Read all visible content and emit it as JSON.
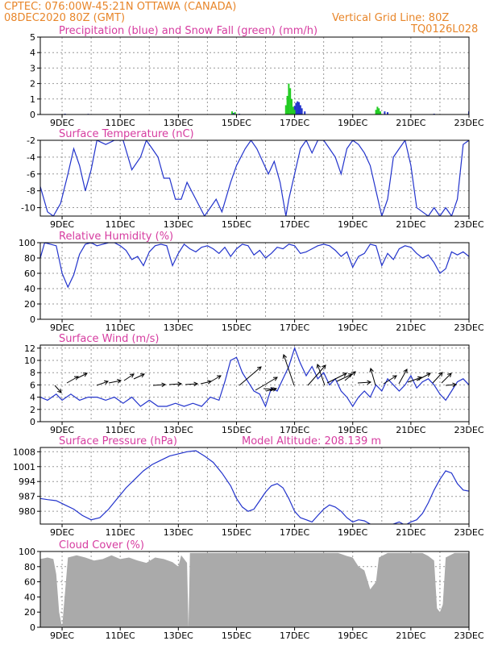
{
  "header": {
    "line1_left": "CPTEC:   076:00W-45:21N   OTTAWA (CANADA)",
    "line2_left": "08DEC2020 80Z (GMT)",
    "line2_right": "Vertical Grid Line: 80Z",
    "line3_right": "TQ0126L028"
  },
  "colors": {
    "header": "#e8862a",
    "title": "#d63ca0",
    "line": "#2233cc",
    "snow": "#22cc22",
    "precip": "#2233cc",
    "cloud": "#aaaaaa"
  },
  "chart_data": [
    {
      "type": "bar",
      "title": "Precipitation (blue) and Snow Fall (green) (mm/h)",
      "x_labels": [
        "9DEC",
        "11DEC",
        "13DEC",
        "15DEC",
        "17DEC",
        "19DEC",
        "21DEC",
        "23DEC"
      ],
      "x_label_days": [
        9,
        11,
        13,
        15,
        17,
        19,
        21,
        23
      ],
      "xlim": [
        8.25,
        23.0
      ],
      "ylim": [
        0,
        5
      ],
      "yticks": [
        0,
        1,
        2,
        3,
        4,
        5
      ],
      "series": [
        {
          "name": "Precipitation",
          "points": [
            [
              9.1,
              0.05
            ],
            [
              9.9,
              0.04
            ],
            [
              14.9,
              0.1
            ],
            [
              15.1,
              0.05
            ],
            [
              16.9,
              0.2
            ],
            [
              17.0,
              0.55
            ],
            [
              17.05,
              0.75
            ],
            [
              17.1,
              0.85
            ],
            [
              17.15,
              0.8
            ],
            [
              17.2,
              0.6
            ],
            [
              17.25,
              0.4
            ],
            [
              17.35,
              0.2
            ],
            [
              19.9,
              0.15
            ],
            [
              20.1,
              0.2
            ],
            [
              20.2,
              0.15
            ],
            [
              21.8,
              0.05
            ],
            [
              23.0,
              0.2
            ]
          ]
        },
        {
          "name": "Snow Fall",
          "points": [
            [
              14.85,
              0.2
            ],
            [
              14.95,
              0.15
            ],
            [
              16.7,
              0.6
            ],
            [
              16.75,
              1.2
            ],
            [
              16.8,
              2.0
            ],
            [
              16.85,
              1.7
            ],
            [
              16.9,
              1.0
            ],
            [
              16.95,
              0.5
            ],
            [
              17.0,
              0.3
            ],
            [
              19.8,
              0.3
            ],
            [
              19.85,
              0.5
            ],
            [
              19.9,
              0.4
            ],
            [
              19.95,
              0.2
            ]
          ]
        }
      ]
    },
    {
      "type": "line",
      "title": "Surface Temperature (nC)",
      "x_labels": [
        "9DEC",
        "11DEC",
        "13DEC",
        "15DEC",
        "17DEC",
        "19DEC",
        "21DEC",
        "23DEC"
      ],
      "x_label_days": [
        9,
        11,
        13,
        15,
        17,
        19,
        21,
        23
      ],
      "xlim": [
        8.25,
        23.0
      ],
      "ylim": [
        -11,
        -2
      ],
      "yticks": [
        -10,
        -8,
        -6,
        -4,
        -2
      ],
      "x": [
        8.25,
        8.5,
        8.7,
        8.95,
        9.2,
        9.4,
        9.6,
        9.8,
        10.0,
        10.2,
        10.5,
        10.8,
        11.1,
        11.4,
        11.7,
        11.9,
        12.1,
        12.3,
        12.5,
        12.7,
        12.9,
        13.1,
        13.3,
        13.6,
        13.9,
        14.1,
        14.3,
        14.5,
        14.8,
        15.0,
        15.3,
        15.5,
        15.7,
        15.9,
        16.1,
        16.3,
        16.5,
        16.6,
        16.7,
        16.8,
        17.0,
        17.2,
        17.4,
        17.6,
        17.8,
        18.0,
        18.2,
        18.4,
        18.6,
        18.8,
        19.0,
        19.2,
        19.4,
        19.6,
        19.8,
        20.0,
        20.2,
        20.4,
        20.6,
        20.8,
        21.0,
        21.2,
        21.4,
        21.6,
        21.8,
        22.0,
        22.2,
        22.4,
        22.6,
        22.8,
        23.0
      ],
      "values": [
        -7.5,
        -10.5,
        -11,
        -9.5,
        -6,
        -3,
        -5,
        -8,
        -5.5,
        -2,
        -2.5,
        -2,
        -2,
        -5.5,
        -4,
        -2,
        -3,
        -4,
        -6.5,
        -6.5,
        -9,
        -9,
        -7,
        -9,
        -11,
        -10,
        -9,
        -10.5,
        -7,
        -5,
        -3,
        -2,
        -3,
        -4.5,
        -6,
        -4.5,
        -7,
        -9,
        -11,
        -9,
        -6,
        -3,
        -2,
        -3.5,
        -2,
        -2,
        -3,
        -4,
        -6,
        -3,
        -2,
        -2.5,
        -3.5,
        -5,
        -8,
        -11,
        -9,
        -4,
        -3,
        -2,
        -5,
        -10,
        -10.5,
        -11,
        -10,
        -11,
        -10,
        -11,
        -9,
        -2.5,
        -2
      ]
    },
    {
      "type": "line",
      "title": "Relative Humidity (%)",
      "x_labels": [
        "9DEC",
        "11DEC",
        "13DEC",
        "15DEC",
        "17DEC",
        "19DEC",
        "21DEC",
        "23DEC"
      ],
      "x_label_days": [
        9,
        11,
        13,
        15,
        17,
        19,
        21,
        23
      ],
      "xlim": [
        8.25,
        23.0
      ],
      "ylim": [
        0,
        100
      ],
      "yticks": [
        0,
        20,
        40,
        60,
        80,
        100
      ],
      "x": [
        8.25,
        8.4,
        8.6,
        8.8,
        9.0,
        9.2,
        9.4,
        9.6,
        9.8,
        10.0,
        10.2,
        10.4,
        10.6,
        10.8,
        11.0,
        11.2,
        11.4,
        11.6,
        11.8,
        12.0,
        12.2,
        12.4,
        12.6,
        12.8,
        13.0,
        13.2,
        13.4,
        13.6,
        13.8,
        14.0,
        14.2,
        14.4,
        14.6,
        14.8,
        15.0,
        15.2,
        15.4,
        15.6,
        15.8,
        16.0,
        16.2,
        16.4,
        16.6,
        16.8,
        17.0,
        17.2,
        17.4,
        17.6,
        17.8,
        18.0,
        18.2,
        18.4,
        18.6,
        18.8,
        19.0,
        19.2,
        19.4,
        19.6,
        19.8,
        20.0,
        20.2,
        20.4,
        20.6,
        20.8,
        21.0,
        21.2,
        21.4,
        21.6,
        21.8,
        22.0,
        22.2,
        22.4,
        22.6,
        22.8,
        23.0
      ],
      "values": [
        80,
        100,
        98,
        96,
        60,
        42,
        58,
        85,
        98,
        100,
        96,
        98,
        100,
        100,
        96,
        90,
        78,
        82,
        70,
        88,
        96,
        98,
        96,
        70,
        86,
        98,
        92,
        88,
        94,
        96,
        92,
        86,
        94,
        82,
        92,
        98,
        96,
        84,
        90,
        80,
        86,
        94,
        92,
        98,
        96,
        86,
        88,
        92,
        96,
        98,
        96,
        90,
        82,
        88,
        68,
        82,
        86,
        98,
        96,
        70,
        86,
        78,
        92,
        96,
        94,
        86,
        80,
        84,
        74,
        60,
        66,
        88,
        84,
        88,
        82
      ]
    },
    {
      "type": "line",
      "title": "Surface Wind (m/s)",
      "x_labels": [
        "9DEC",
        "11DEC",
        "13DEC",
        "15DEC",
        "17DEC",
        "19DEC",
        "21DEC",
        "23DEC"
      ],
      "x_label_days": [
        9,
        11,
        13,
        15,
        17,
        19,
        21,
        23
      ],
      "xlim": [
        8.25,
        23.0
      ],
      "ylim": [
        0,
        12.5
      ],
      "yticks": [
        0,
        2,
        4,
        6,
        8,
        10,
        12
      ],
      "x": [
        8.25,
        8.5,
        8.8,
        9.0,
        9.3,
        9.6,
        9.9,
        10.2,
        10.5,
        10.8,
        11.1,
        11.4,
        11.7,
        12.0,
        12.3,
        12.6,
        12.9,
        13.2,
        13.5,
        13.8,
        14.1,
        14.4,
        14.6,
        14.8,
        15.0,
        15.2,
        15.4,
        15.6,
        15.8,
        16.0,
        16.2,
        16.4,
        16.6,
        16.8,
        17.0,
        17.2,
        17.4,
        17.6,
        17.8,
        18.0,
        18.2,
        18.4,
        18.6,
        18.8,
        19.0,
        19.2,
        19.4,
        19.6,
        19.8,
        20.0,
        20.2,
        20.4,
        20.6,
        20.8,
        21.0,
        21.2,
        21.4,
        21.6,
        21.8,
        22.0,
        22.2,
        22.4,
        22.6,
        22.8,
        23.0
      ],
      "values": [
        4,
        3.5,
        4.5,
        3.5,
        4.5,
        3.5,
        4,
        4,
        3.5,
        4,
        3,
        4,
        2.5,
        3.5,
        2.5,
        2.5,
        3,
        2.5,
        3,
        2.5,
        4,
        3.5,
        6.5,
        10,
        10.5,
        8,
        6.5,
        5,
        4.5,
        2.5,
        5.5,
        5,
        7,
        9,
        12,
        9.5,
        7.5,
        9,
        7,
        8,
        6,
        7,
        5,
        4,
        2.5,
        4,
        5,
        4,
        6,
        5,
        7,
        6,
        5,
        6,
        7.5,
        5.5,
        6.5,
        7,
        6,
        4.5,
        3.5,
        5,
        6.5,
        7,
        6
      ]
    },
    {
      "type": "line",
      "title": "Surface Pressure (hPa)",
      "annotation": "Model Altitude: 208.139 m",
      "x_labels": [
        "9DEC",
        "11DEC",
        "13DEC",
        "15DEC",
        "17DEC",
        "19DEC",
        "21DEC",
        "23DEC"
      ],
      "x_label_days": [
        9,
        11,
        13,
        15,
        17,
        19,
        21,
        23
      ],
      "xlim": [
        8.25,
        23.0
      ],
      "ylim": [
        974,
        1010
      ],
      "yticks": [
        980,
        987,
        994,
        1001,
        1008
      ],
      "x": [
        8.25,
        8.5,
        8.8,
        9.1,
        9.4,
        9.7,
        10.0,
        10.3,
        10.6,
        10.9,
        11.2,
        11.5,
        11.8,
        12.1,
        12.4,
        12.7,
        13.0,
        13.3,
        13.6,
        13.9,
        14.2,
        14.5,
        14.8,
        15.0,
        15.2,
        15.4,
        15.6,
        15.8,
        16.0,
        16.2,
        16.4,
        16.6,
        16.8,
        17.0,
        17.2,
        17.4,
        17.6,
        17.8,
        18.0,
        18.2,
        18.4,
        18.6,
        18.8,
        19.0,
        19.2,
        19.4,
        19.6,
        19.8,
        20.0,
        20.2,
        20.4,
        20.6,
        20.8,
        21.0,
        21.2,
        21.4,
        21.6,
        21.8,
        22.0,
        22.2,
        22.4,
        22.6,
        22.8,
        23.0
      ],
      "values": [
        986,
        985.5,
        985,
        983,
        981,
        978,
        976,
        977,
        981,
        986,
        991,
        995,
        999,
        1002,
        1004,
        1006,
        1007,
        1008,
        1008.5,
        1006,
        1003,
        998,
        992,
        986,
        982,
        980,
        981,
        985,
        989,
        992,
        993,
        991,
        986,
        980,
        977,
        976,
        975,
        978,
        981,
        983,
        982,
        980,
        977,
        975,
        976,
        975.5,
        974,
        973.5,
        974,
        973,
        974,
        975,
        973.5,
        975,
        976,
        979,
        984,
        990,
        995,
        999,
        998,
        993,
        990,
        989.5
      ]
    },
    {
      "type": "area",
      "title": "Cloud Cover (%)",
      "x_labels": [
        "9DEC",
        "11DEC",
        "13DEC",
        "15DEC",
        "17DEC",
        "19DEC",
        "21DEC",
        "23DEC"
      ],
      "x_label_days": [
        9,
        11,
        13,
        15,
        17,
        19,
        21,
        23
      ],
      "xlim": [
        8.25,
        23.0
      ],
      "ylim": [
        0,
        100
      ],
      "yticks": [
        0,
        20,
        40,
        60,
        80,
        100
      ],
      "x": [
        8.25,
        8.5,
        8.7,
        8.8,
        8.9,
        9.0,
        9.2,
        9.5,
        9.8,
        10.1,
        10.4,
        10.7,
        11.0,
        11.3,
        11.6,
        11.9,
        12.2,
        12.5,
        12.8,
        13.0,
        13.1,
        13.2,
        13.3,
        13.35,
        13.4,
        13.7,
        14.0,
        14.3,
        14.6,
        14.9,
        15.2,
        15.5,
        15.8,
        16.1,
        16.4,
        16.7,
        17.0,
        17.3,
        17.6,
        17.9,
        18.2,
        18.5,
        18.8,
        19.0,
        19.2,
        19.4,
        19.6,
        19.8,
        19.9,
        20.2,
        20.5,
        20.8,
        21.1,
        21.4,
        21.6,
        21.8,
        21.9,
        22.0,
        22.1,
        22.2,
        22.5,
        22.8,
        23.0
      ],
      "values": [
        90,
        92,
        90,
        70,
        20,
        0,
        92,
        95,
        92,
        88,
        90,
        95,
        90,
        92,
        88,
        85,
        92,
        90,
        86,
        80,
        95,
        90,
        85,
        0,
        98,
        98,
        98,
        98,
        98,
        98,
        98,
        98,
        98,
        98,
        98,
        98,
        98,
        98,
        98,
        98,
        98,
        98,
        94,
        92,
        80,
        75,
        50,
        60,
        92,
        98,
        98,
        98,
        98,
        98,
        94,
        88,
        25,
        20,
        30,
        92,
        98,
        98,
        98
      ]
    }
  ]
}
